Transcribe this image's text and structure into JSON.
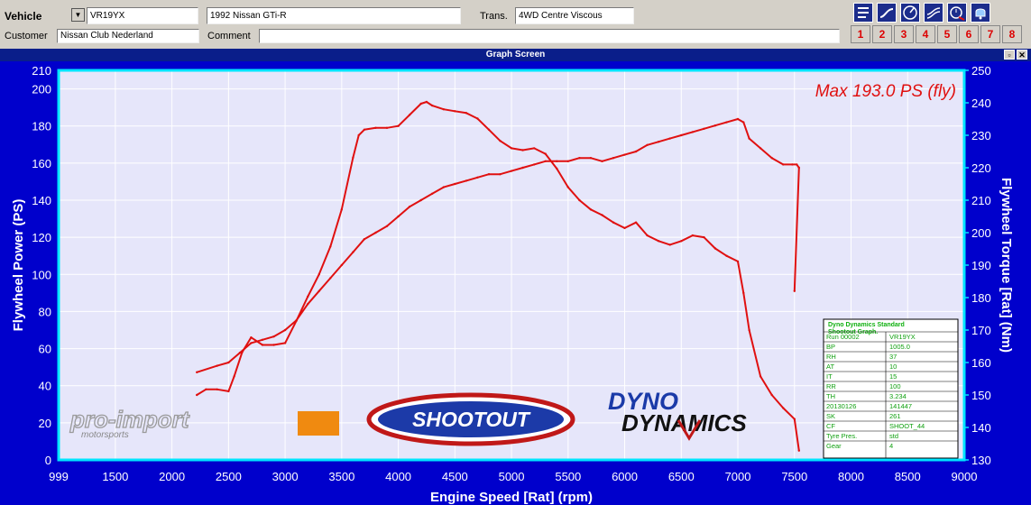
{
  "header": {
    "vehicle_label": "Vehicle",
    "vehicle_reg": "VR19YX",
    "vehicle_model": "1992 Nissan GTi-R",
    "trans_label": "Trans.",
    "trans_value": "4WD Centre Viscous",
    "customer_label": "Customer",
    "customer_value": "Nissan Club Nederland",
    "comment_label": "Comment",
    "comment_value": ""
  },
  "toolbar": {
    "icons": [
      "list-icon",
      "power-curve-icon",
      "gauge-icon",
      "multi-curve-icon",
      "stopwatch-icon",
      "bell-icon"
    ],
    "numbers": [
      "1",
      "2",
      "3",
      "4",
      "5",
      "6",
      "7",
      "8"
    ]
  },
  "window": {
    "title": "Graph Screen"
  },
  "colors": {
    "background": "#0000cc",
    "plot": "#e6e6fa",
    "axis": "#00e5ff",
    "curve": "#e01010",
    "text_white": "#ffffff"
  },
  "chart_data": {
    "type": "line",
    "xlabel": "Engine Speed [Rat] (rpm)",
    "ylabel": "Flywheel Power (PS)",
    "y2label": "Flywheel Torque [Rat] (Nm)",
    "xlim": [
      999,
      9000
    ],
    "ylim": [
      0,
      210
    ],
    "y2lim": [
      130,
      250
    ],
    "x_ticks": [
      "999",
      "1500",
      "2000",
      "2500",
      "3000",
      "3500",
      "4000",
      "4500",
      "5000",
      "5500",
      "6000",
      "6500",
      "7000",
      "7500",
      "8000",
      "8500",
      "9000"
    ],
    "y_ticks": [
      "0",
      "20",
      "40",
      "60",
      "80",
      "100",
      "120",
      "140",
      "160",
      "180",
      "200",
      "210"
    ],
    "y2_ticks": [
      "130",
      "140",
      "150",
      "160",
      "170",
      "180",
      "190",
      "200",
      "210",
      "220",
      "230",
      "240",
      "250"
    ],
    "max_annotation": "Max 193.0 PS (fly)",
    "series": [
      {
        "axis": "left",
        "x": [
          2220,
          2300,
          2400,
          2500,
          2550,
          2620,
          2700,
          2800,
          2900,
          3000,
          3100,
          3200,
          3300,
          3400,
          3500,
          3600,
          3650,
          3700,
          3800,
          3900,
          4000,
          4100,
          4200,
          4250,
          4300,
          4400,
          4500,
          4600,
          4700,
          4800,
          4900,
          5000,
          5100,
          5200,
          5300,
          5400,
          5500,
          5600,
          5700,
          5800,
          5900,
          6000,
          6100,
          6200,
          6300,
          6400,
          6500,
          6600,
          6700,
          6800,
          6900,
          7000,
          7050,
          7100,
          7200,
          7300,
          7400,
          7500,
          7540
        ],
        "y": [
          35,
          38,
          38,
          37,
          45,
          58,
          66,
          62,
          62,
          63,
          75,
          88,
          100,
          115,
          135,
          163,
          175,
          178,
          179,
          179,
          180,
          186,
          192,
          193,
          191,
          189,
          188,
          187,
          184,
          178,
          172,
          168,
          167,
          168,
          165,
          157,
          147,
          140,
          135,
          132,
          128,
          125,
          128,
          121,
          118,
          116,
          118,
          121,
          120,
          114,
          110,
          107,
          90,
          70,
          45,
          35,
          28,
          22,
          5
        ]
      },
      {
        "axis": "right",
        "x": [
          2220,
          2400,
          2500,
          2600,
          2700,
          2800,
          2900,
          3000,
          3100,
          3200,
          3300,
          3400,
          3500,
          3600,
          3700,
          3800,
          3900,
          4000,
          4100,
          4200,
          4300,
          4400,
          4500,
          4600,
          4700,
          4800,
          4900,
          5000,
          5100,
          5200,
          5300,
          5400,
          5500,
          5600,
          5700,
          5800,
          5900,
          6000,
          6100,
          6200,
          6300,
          6400,
          6500,
          6600,
          6700,
          6800,
          6900,
          7000,
          7050,
          7100,
          7200,
          7300,
          7400,
          7480,
          7520,
          7540,
          7500
        ],
        "y": [
          157,
          159,
          160,
          163,
          166,
          167,
          168,
          170,
          173,
          178,
          182,
          186,
          190,
          194,
          198,
          200,
          202,
          205,
          208,
          210,
          212,
          214,
          215,
          216,
          217,
          218,
          218,
          219,
          220,
          221,
          222,
          222,
          222,
          223,
          223,
          222,
          223,
          224,
          225,
          227,
          228,
          229,
          230,
          231,
          232,
          233,
          234,
          235,
          234,
          229,
          226,
          223,
          221,
          221,
          221,
          220,
          182
        ]
      }
    ],
    "info_table": {
      "title_lines": [
        "Dyno Dynamics Standard",
        "Shootout Graph."
      ],
      "rows": [
        [
          "Run 00002",
          "VR19YX"
        ],
        [
          "BP",
          "1005.0"
        ],
        [
          "RH",
          "37"
        ],
        [
          "AT",
          "10"
        ],
        [
          "IT",
          "15"
        ],
        [
          "RR",
          "100"
        ],
        [
          "TH",
          "3.234"
        ],
        [
          "20130126",
          "141447"
        ],
        [
          "SK",
          "261"
        ],
        [
          "CF",
          "SHOOT_44"
        ],
        [
          "Tyre Pres.",
          "std"
        ],
        [
          "Gear",
          "4"
        ]
      ]
    },
    "logos": {
      "proimport": [
        "pro-import",
        "motorsports"
      ],
      "shootout": "SHOOTOUT",
      "dyno_dynamics": [
        "DYNO",
        "DYNAMICS"
      ]
    }
  }
}
